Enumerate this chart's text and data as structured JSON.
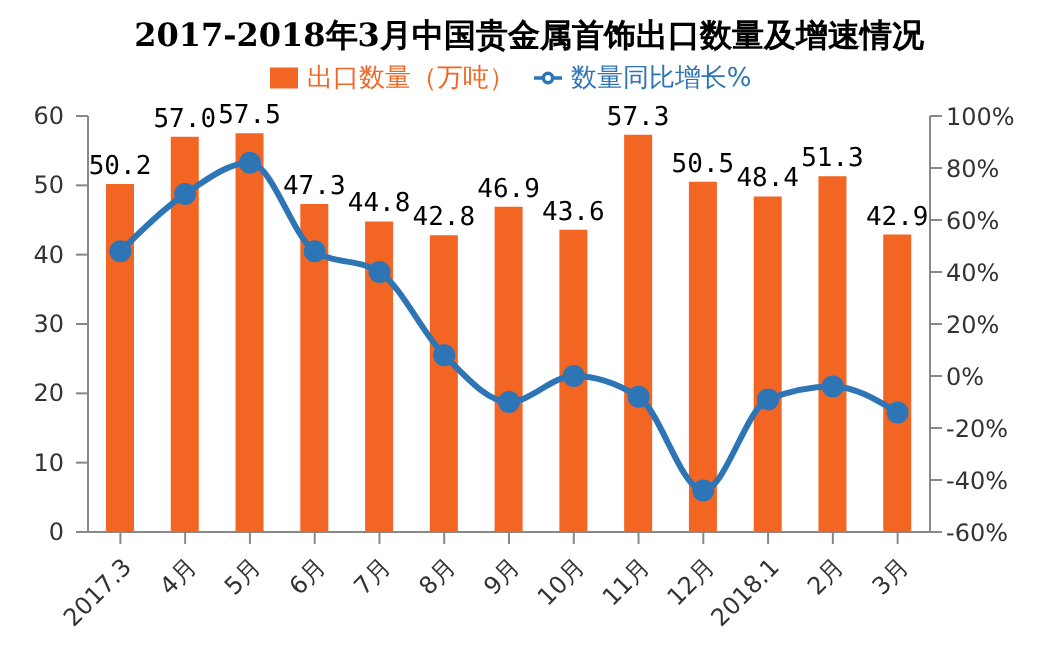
{
  "chart_data": {
    "type": "bar",
    "title": "2017-2018年3月中国贵金属首饰出口数量及增速情况",
    "categories": [
      "2017.3",
      "4月",
      "5月",
      "6月",
      "7月",
      "8月",
      "9月",
      "10月",
      "11月",
      "12月",
      "2018.1",
      "2月",
      "3月"
    ],
    "series": [
      {
        "name": "出口数量（万吨）",
        "color": "#f26522",
        "values": [
          50.2,
          57.0,
          57.5,
          47.3,
          44.8,
          42.8,
          46.9,
          43.6,
          57.3,
          50.5,
          48.4,
          51.3,
          42.9
        ],
        "value_labels": [
          "50.2",
          "57.0",
          "57.5",
          "47.3",
          "44.8",
          "42.8",
          "46.9",
          "43.6",
          "57.3",
          "50.5",
          "48.4",
          "51.3",
          "42.9"
        ]
      },
      {
        "name": "数量同比增长%",
        "type": "line",
        "axis": "y2",
        "color": "#2e75b6",
        "values": [
          48,
          70,
          82,
          48,
          40,
          8,
          -10,
          0,
          -8,
          -44,
          -9,
          -4,
          -14
        ]
      }
    ],
    "ylim": [
      0,
      60
    ],
    "yticks": [
      0,
      10,
      20,
      30,
      40,
      50,
      60
    ],
    "y2lim": [
      -60,
      100
    ],
    "y2ticks": [
      {
        "value": -60,
        "label": "-60%"
      },
      {
        "value": -40,
        "label": "-40%"
      },
      {
        "value": -20,
        "label": "-20%"
      },
      {
        "value": 0,
        "label": "0%"
      },
      {
        "value": 20,
        "label": "20%"
      },
      {
        "value": 40,
        "label": "40%"
      },
      {
        "value": 60,
        "label": "60%"
      },
      {
        "value": 80,
        "label": "80%"
      },
      {
        "value": 100,
        "label": "100%"
      }
    ],
    "legend": "top",
    "marker": "circle",
    "line_style": "solid",
    "grid": false
  }
}
